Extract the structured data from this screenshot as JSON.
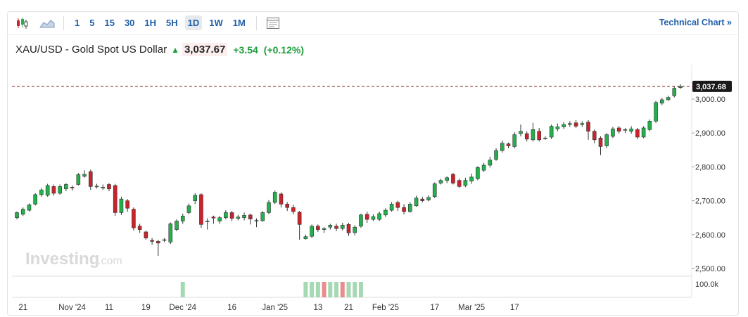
{
  "toolbar": {
    "timeframes": [
      "1",
      "5",
      "15",
      "30",
      "1H",
      "5H",
      "1D",
      "1W",
      "1M"
    ],
    "active_timeframe": "1D",
    "technical_chart_label": "Technical Chart",
    "technical_chart_arrow": "»",
    "icons": [
      "candlestick-icon",
      "area-chart-icon",
      "layout-icon"
    ]
  },
  "header": {
    "instrument": "XAU/USD - Gold Spot US Dollar",
    "price": "3,037.67",
    "change": "+3.54",
    "change_pct": "(+0.12%)"
  },
  "watermark": {
    "brand": "Investing",
    "suffix": ".com"
  },
  "colors": {
    "up": "#22b14c",
    "down": "#c9232b",
    "up_vol": "#a5d9b4",
    "down_vol": "#e88c8c",
    "accent": "#1f5fa8"
  },
  "chart_data": {
    "type": "candlestick",
    "title": "XAU/USD - Gold Spot US Dollar",
    "y_ticks": [
      "3,000.00",
      "2,900.00",
      "2,800.00",
      "2,700.00",
      "2,600.00",
      "2,500.00"
    ],
    "y_tick_values": [
      3000,
      2900,
      2800,
      2700,
      2600,
      2500
    ],
    "ylim": [
      2495,
      3080
    ],
    "last_price_label": "3,037.68",
    "last_price": 3037.68,
    "x_labels": [
      "21",
      "Nov '24",
      "11",
      "19",
      "Dec '24",
      "16",
      "Jan '25",
      "13",
      "21",
      "Feb '25",
      "17",
      "Mar '25",
      "17"
    ],
    "x_label_index": [
      1,
      9,
      15,
      21,
      27,
      35,
      42,
      49,
      54,
      60,
      68,
      74,
      81
    ],
    "volume_label": "100.0k",
    "volume": [
      {
        "i": 27,
        "dir": "up"
      },
      {
        "i": 47,
        "dir": "up"
      },
      {
        "i": 48,
        "dir": "up"
      },
      {
        "i": 49,
        "dir": "up"
      },
      {
        "i": 50,
        "dir": "down"
      },
      {
        "i": 51,
        "dir": "up"
      },
      {
        "i": 52,
        "dir": "up"
      },
      {
        "i": 53,
        "dir": "down"
      },
      {
        "i": 54,
        "dir": "up"
      },
      {
        "i": 55,
        "dir": "up"
      },
      {
        "i": 56,
        "dir": "up"
      }
    ],
    "candles": [
      [
        2650,
        2665,
        2645,
        2668
      ],
      [
        2660,
        2675,
        2655,
        2680
      ],
      [
        2672,
        2688,
        2668,
        2692
      ],
      [
        2690,
        2718,
        2686,
        2722
      ],
      [
        2718,
        2732,
        2712,
        2738
      ],
      [
        2716,
        2745,
        2712,
        2750
      ],
      [
        2742,
        2722,
        2715,
        2748
      ],
      [
        2722,
        2742,
        2718,
        2748
      ],
      [
        2735,
        2748,
        2728,
        2752
      ],
      [
        2740,
        2738,
        2730,
        2745
      ],
      [
        2748,
        2777,
        2745,
        2782
      ],
      [
        2772,
        2778,
        2768,
        2790
      ],
      [
        2786,
        2742,
        2732,
        2792
      ],
      [
        2742,
        2743,
        2736,
        2750
      ],
      [
        2738,
        2740,
        2732,
        2748
      ],
      [
        2748,
        2735,
        2728,
        2752
      ],
      [
        2745,
        2665,
        2655,
        2750
      ],
      [
        2665,
        2705,
        2658,
        2712
      ],
      [
        2700,
        2678,
        2668,
        2705
      ],
      [
        2675,
        2620,
        2612,
        2680
      ],
      [
        2625,
        2615,
        2605,
        2632
      ],
      [
        2608,
        2590,
        2585,
        2612
      ],
      [
        2583,
        2580,
        2570,
        2590
      ],
      [
        2580,
        2575,
        2537,
        2585
      ],
      [
        2585,
        2585,
        2578,
        2590
      ],
      [
        2578,
        2632,
        2572,
        2636
      ],
      [
        2615,
        2640,
        2610,
        2645
      ],
      [
        2640,
        2655,
        2632,
        2662
      ],
      [
        2665,
        2685,
        2660,
        2692
      ],
      [
        2700,
        2716,
        2690,
        2722
      ],
      [
        2718,
        2630,
        2620,
        2722
      ],
      [
        2640,
        2640,
        2615,
        2648
      ],
      [
        2652,
        2649,
        2632,
        2656
      ],
      [
        2640,
        2650,
        2632,
        2655
      ],
      [
        2650,
        2665,
        2645,
        2672
      ],
      [
        2665,
        2648,
        2640,
        2670
      ],
      [
        2648,
        2652,
        2642,
        2658
      ],
      [
        2650,
        2657,
        2642,
        2665
      ],
      [
        2658,
        2646,
        2630,
        2662
      ],
      [
        2640,
        2642,
        2622,
        2648
      ],
      [
        2641,
        2665,
        2638,
        2670
      ],
      [
        2665,
        2695,
        2660,
        2702
      ],
      [
        2695,
        2725,
        2690,
        2730
      ],
      [
        2720,
        2690,
        2680,
        2725
      ],
      [
        2690,
        2680,
        2670,
        2696
      ],
      [
        2680,
        2668,
        2660,
        2688
      ],
      [
        2666,
        2630,
        2585,
        2670
      ],
      [
        2588,
        2594,
        2585,
        2600
      ],
      [
        2595,
        2625,
        2590,
        2630
      ],
      [
        2625,
        2615,
        2608,
        2630
      ],
      [
        2615,
        2618,
        2605,
        2622
      ],
      [
        2622,
        2628,
        2615,
        2632
      ],
      [
        2625,
        2618,
        2610,
        2632
      ],
      [
        2618,
        2628,
        2612,
        2635
      ],
      [
        2630,
        2605,
        2596,
        2635
      ],
      [
        2606,
        2622,
        2598,
        2628
      ],
      [
        2625,
        2658,
        2620,
        2662
      ],
      [
        2660,
        2645,
        2635,
        2668
      ],
      [
        2645,
        2653,
        2640,
        2660
      ],
      [
        2645,
        2662,
        2640,
        2668
      ],
      [
        2658,
        2672,
        2652,
        2678
      ],
      [
        2672,
        2690,
        2668,
        2696
      ],
      [
        2695,
        2680,
        2670,
        2700
      ],
      [
        2680,
        2668,
        2660,
        2690
      ],
      [
        2668,
        2690,
        2665,
        2696
      ],
      [
        2685,
        2708,
        2682,
        2715
      ],
      [
        2705,
        2700,
        2695,
        2712
      ],
      [
        2702,
        2710,
        2698,
        2716
      ],
      [
        2712,
        2750,
        2708,
        2754
      ],
      [
        2752,
        2760,
        2748,
        2765
      ],
      [
        2760,
        2768,
        2752,
        2772
      ],
      [
        2778,
        2752,
        2748,
        2782
      ],
      [
        2760,
        2742,
        2738,
        2765
      ],
      [
        2745,
        2760,
        2740,
        2768
      ],
      [
        2758,
        2770,
        2750,
        2780
      ],
      [
        2765,
        2798,
        2760,
        2802
      ],
      [
        2790,
        2805,
        2785,
        2812
      ],
      [
        2805,
        2820,
        2798,
        2830
      ],
      [
        2822,
        2848,
        2818,
        2855
      ],
      [
        2848,
        2870,
        2842,
        2878
      ],
      [
        2868,
        2862,
        2855,
        2872
      ],
      [
        2860,
        2895,
        2855,
        2902
      ],
      [
        2898,
        2905,
        2890,
        2925
      ],
      [
        2898,
        2882,
        2875,
        2905
      ],
      [
        2880,
        2910,
        2875,
        2930
      ],
      [
        2905,
        2880,
        2875,
        2915
      ],
      [
        2885,
        2885,
        2880,
        2890
      ],
      [
        2888,
        2920,
        2882,
        2925
      ],
      [
        2912,
        2918,
        2905,
        2928
      ],
      [
        2918,
        2925,
        2912,
        2932
      ],
      [
        2925,
        2928,
        2918,
        2935
      ],
      [
        2930,
        2920,
        2915,
        2938
      ],
      [
        2925,
        2928,
        2918,
        2935
      ],
      [
        2932,
        2905,
        2880,
        2938
      ],
      [
        2905,
        2880,
        2870,
        2910
      ],
      [
        2885,
        2860,
        2835,
        2890
      ],
      [
        2862,
        2895,
        2855,
        2900
      ],
      [
        2890,
        2912,
        2885,
        2918
      ],
      [
        2915,
        2905,
        2898,
        2920
      ],
      [
        2908,
        2910,
        2900,
        2915
      ],
      [
        2905,
        2912,
        2898,
        2920
      ],
      [
        2910,
        2888,
        2882,
        2915
      ],
      [
        2888,
        2915,
        2885,
        2920
      ],
      [
        2910,
        2935,
        2905,
        2940
      ],
      [
        2935,
        2990,
        2930,
        2995
      ],
      [
        2988,
        2998,
        2982,
        3004
      ],
      [
        2998,
        3005,
        2995,
        3010
      ],
      [
        3010,
        3032,
        3005,
        3038
      ],
      [
        3034,
        3038,
        3030,
        3044
      ]
    ]
  }
}
